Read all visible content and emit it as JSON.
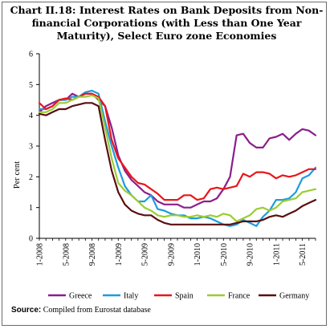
{
  "title": "Chart II.18: Interest Rates on Bank Deposits from Non-financial Corporations (with Less than One Year Maturity), Select Euro zone Economies",
  "source": {
    "label": "Source:",
    "text": "Compiled from Eurostat database"
  },
  "chart_data": {
    "type": "line",
    "title": "Chart II.18: Interest Rates on Bank Deposits from Non-financial Corporations (with Less than One Year Maturity), Select Euro zone Economies",
    "ylabel": "Per cent",
    "xlabel": "",
    "ylim": [
      0,
      6
    ],
    "yticks": [
      "0",
      "1",
      "2",
      "3",
      "4",
      "5",
      "6"
    ],
    "xlim": [
      "1-2008",
      "8-2011"
    ],
    "xtick_labels": [
      "1-2008",
      "5-2008",
      "9-2008",
      "1-2009",
      "5-2009",
      "9-2009",
      "1-2010",
      "5-2010",
      "9-2010",
      "1-2011",
      "5-2011"
    ],
    "x": [
      "1-2008",
      "2-2008",
      "3-2008",
      "4-2008",
      "5-2008",
      "6-2008",
      "7-2008",
      "8-2008",
      "9-2008",
      "10-2008",
      "11-2008",
      "12-2008",
      "1-2009",
      "2-2009",
      "3-2009",
      "4-2009",
      "5-2009",
      "6-2009",
      "7-2009",
      "8-2009",
      "9-2009",
      "10-2009",
      "11-2009",
      "12-2009",
      "1-2010",
      "2-2010",
      "3-2010",
      "4-2010",
      "5-2010",
      "6-2010",
      "7-2010",
      "8-2010",
      "9-2010",
      "10-2010",
      "11-2010",
      "12-2010",
      "1-2011",
      "2-2011",
      "3-2011",
      "4-2011",
      "5-2011",
      "6-2011",
      "7-2011"
    ],
    "grid": false,
    "legend_position": "bottom",
    "series": [
      {
        "name": "Greece",
        "color": "#8b1e8b",
        "values": [
          4.1,
          4.3,
          4.4,
          4.5,
          4.5,
          4.7,
          4.6,
          4.7,
          4.7,
          4.5,
          4.3,
          3.6,
          2.7,
          2.2,
          1.9,
          1.7,
          1.5,
          1.4,
          1.2,
          1.1,
          1.1,
          1.1,
          1.0,
          1.0,
          1.1,
          1.2,
          1.2,
          1.3,
          1.6,
          2.0,
          3.35,
          3.4,
          3.1,
          2.95,
          2.95,
          3.25,
          3.3,
          3.4,
          3.2,
          3.4,
          3.55,
          3.5,
          3.35
        ]
      },
      {
        "name": "Italy",
        "color": "#1e9be0",
        "values": [
          4.2,
          4.2,
          4.3,
          4.5,
          4.5,
          4.6,
          4.6,
          4.75,
          4.8,
          4.7,
          3.8,
          3.0,
          2.3,
          1.7,
          1.4,
          1.2,
          1.2,
          1.4,
          0.95,
          0.9,
          0.8,
          0.75,
          0.75,
          0.65,
          0.65,
          0.7,
          0.65,
          0.55,
          0.45,
          0.4,
          0.45,
          0.6,
          0.5,
          0.4,
          0.7,
          0.9,
          1.25,
          1.25,
          1.3,
          1.5,
          1.95,
          2.05,
          2.3
        ]
      },
      {
        "name": "Spain",
        "color": "#e8161b",
        "values": [
          4.4,
          4.2,
          4.3,
          4.5,
          4.55,
          4.5,
          4.6,
          4.7,
          4.7,
          4.6,
          4.3,
          3.2,
          2.6,
          2.3,
          2.0,
          1.8,
          1.75,
          1.6,
          1.45,
          1.25,
          1.25,
          1.25,
          1.4,
          1.4,
          1.25,
          1.3,
          1.6,
          1.65,
          1.6,
          1.65,
          1.7,
          2.1,
          2.0,
          2.15,
          2.15,
          2.1,
          1.95,
          2.05,
          2.0,
          2.05,
          2.15,
          2.25,
          2.25
        ]
      },
      {
        "name": "France",
        "color": "#9acd32",
        "values": [
          4.1,
          4.1,
          4.2,
          4.4,
          4.4,
          4.5,
          4.6,
          4.6,
          4.65,
          4.55,
          3.6,
          2.6,
          1.8,
          1.55,
          1.4,
          1.2,
          1.0,
          0.9,
          0.75,
          0.7,
          0.75,
          0.75,
          0.7,
          0.7,
          0.75,
          0.7,
          0.75,
          0.7,
          0.8,
          0.75,
          0.55,
          0.65,
          0.75,
          0.95,
          1.0,
          0.9,
          1.0,
          1.2,
          1.25,
          1.3,
          1.5,
          1.55,
          1.6
        ]
      },
      {
        "name": "Germany",
        "color": "#5a0f0f",
        "values": [
          4.05,
          4.0,
          4.1,
          4.2,
          4.2,
          4.3,
          4.35,
          4.4,
          4.4,
          4.3,
          3.2,
          2.2,
          1.5,
          1.1,
          0.9,
          0.8,
          0.75,
          0.75,
          0.6,
          0.5,
          0.45,
          0.45,
          0.45,
          0.45,
          0.45,
          0.45,
          0.45,
          0.45,
          0.45,
          0.45,
          0.5,
          0.55,
          0.55,
          0.55,
          0.6,
          0.7,
          0.75,
          0.7,
          0.8,
          0.9,
          1.05,
          1.15,
          1.25
        ]
      }
    ]
  }
}
